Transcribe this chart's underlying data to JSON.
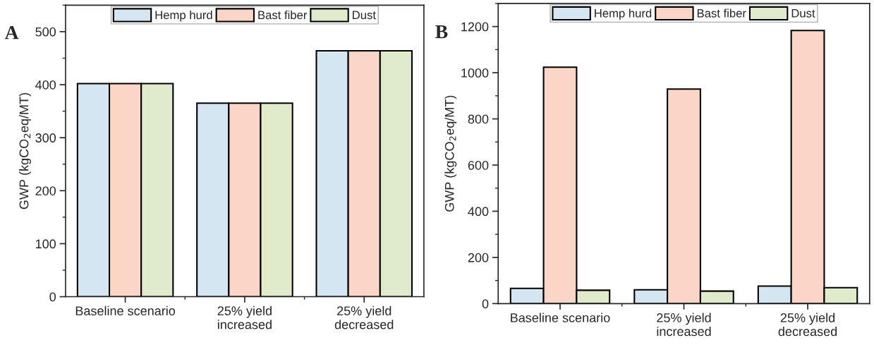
{
  "chart_data": [
    {
      "type": "bar",
      "annotations": [
        "A"
      ],
      "ylabel": "GWP (kgCO$_{2}$eq/MT)",
      "categories": [
        "Baseline scenario",
        "25% yield\nincreased",
        "25% yield\ndecreased"
      ],
      "series": [
        {
          "name": "Hemp hurd",
          "color": "#d4e6f1",
          "values": [
            402,
            365,
            464
          ]
        },
        {
          "name": "Bast fiber",
          "color": "#fbd5c5",
          "values": [
            402,
            365,
            464
          ]
        },
        {
          "name": "Dust",
          "color": "#e0ebcc",
          "values": [
            402,
            365,
            464
          ]
        }
      ],
      "ylim": [
        0,
        550
      ],
      "yticks": [
        0,
        100,
        200,
        300,
        400,
        500
      ],
      "grid": false,
      "legend": "top"
    },
    {
      "type": "bar",
      "annotations": [
        "B"
      ],
      "ylabel": "GWP (kgCO$_{2}$eq/MT)",
      "categories": [
        "Baseline scenario",
        "25% yield\nincreased",
        "25% yield\ndecreased"
      ],
      "series": [
        {
          "name": "Hemp hurd",
          "color": "#d4e6f1",
          "values": [
            66,
            60,
            76
          ]
        },
        {
          "name": "Bast fiber",
          "color": "#fbd5c5",
          "values": [
            1024,
            929,
            1183
          ]
        },
        {
          "name": "Dust",
          "color": "#e0ebcc",
          "values": [
            58,
            54,
            69
          ]
        }
      ],
      "ylim": [
        0,
        1300
      ],
      "yticks": [
        0,
        200,
        400,
        600,
        800,
        1000,
        1200
      ],
      "grid": false,
      "legend": "top"
    }
  ]
}
